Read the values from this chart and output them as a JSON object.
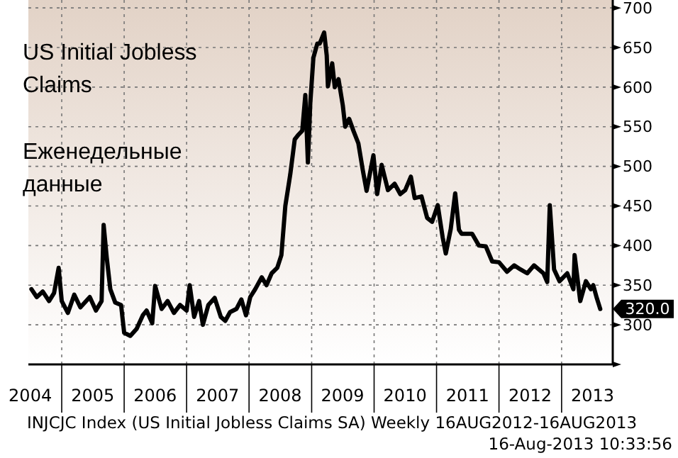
{
  "chart_data": {
    "type": "line",
    "title": "US Initial Jobless Claims",
    "subtitle": "Еженедельные данные",
    "annotations": [
      "INJCJC Index (US Initial Jobless Claims SA)  Weekly 16AUG2012-16AUG2013",
      "16-Aug-2013 10:33:56",
      "320.0"
    ],
    "grid": true,
    "line_style": "solid",
    "marker": "none",
    "xlim": [
      "2004-06-20",
      "2013-10-27"
    ],
    "ylim": [
      250,
      710
    ],
    "xticks": [
      {
        "value": "2004-07-01",
        "label": "2004"
      },
      {
        "value": "2005-01-01",
        "label": null
      },
      {
        "value": "2005-07-01",
        "label": "2005"
      },
      {
        "value": "2006-01-01",
        "label": null
      },
      {
        "value": "2006-07-01",
        "label": "2006"
      },
      {
        "value": "2007-01-01",
        "label": null
      },
      {
        "value": "2007-07-01",
        "label": "2007"
      },
      {
        "value": "2008-01-01",
        "label": null
      },
      {
        "value": "2008-07-01",
        "label": "2008"
      },
      {
        "value": "2009-01-01",
        "label": null
      },
      {
        "value": "2009-07-01",
        "label": "2009"
      },
      {
        "value": "2010-01-01",
        "label": null
      },
      {
        "value": "2010-07-01",
        "label": "2010"
      },
      {
        "value": "2011-01-01",
        "label": null
      },
      {
        "value": "2011-07-01",
        "label": "2011"
      },
      {
        "value": "2012-01-01",
        "label": null
      },
      {
        "value": "2012-07-01",
        "label": "2012"
      },
      {
        "value": "2013-01-01",
        "label": null
      },
      {
        "value": "2013-07-01",
        "label": "2013"
      }
    ],
    "yticks": [
      {
        "value": 250,
        "label": null
      },
      300,
      350,
      400,
      450,
      500,
      550,
      600,
      650,
      700
    ],
    "series": [
      {
        "color": "#000000",
        "x": [
          "2004-07-08",
          "2004-08-08",
          "2004-09-12",
          "2004-10-19",
          "2004-11-17",
          "2004-12-14",
          "2005-01-01",
          "2005-02-06",
          "2005-03-15",
          "2005-04-20",
          "2005-06-14",
          "2005-07-20",
          "2005-08-22",
          "2005-09-03",
          "2005-09-21",
          "2005-10-12",
          "2005-11-10",
          "2005-12-14",
          "2006-01-01",
          "2006-02-06",
          "2006-03-15",
          "2006-04-20",
          "2006-05-12",
          "2006-06-14",
          "2006-07-01",
          "2006-08-08",
          "2006-09-12",
          "2006-10-19",
          "2006-11-24",
          "2007-01-01",
          "2007-01-19",
          "2007-02-14",
          "2007-03-15",
          "2007-04-06",
          "2007-05-08",
          "2007-06-14",
          "2007-07-20",
          "2007-08-15",
          "2007-09-12",
          "2007-10-19",
          "2007-11-17",
          "2007-12-14",
          "2008-01-08",
          "2008-02-06",
          "2008-03-15",
          "2008-04-12",
          "2008-05-12",
          "2008-06-14",
          "2008-07-08",
          "2008-07-31",
          "2008-08-29",
          "2008-09-24",
          "2008-10-16",
          "2008-11-07",
          "2008-11-25",
          "2008-12-10",
          "2008-12-24",
          "2009-01-11",
          "2009-02-03",
          "2009-02-17",
          "2009-03-15",
          "2009-03-30",
          "2009-04-06",
          "2009-05-01",
          "2009-05-16",
          "2009-06-07",
          "2009-07-02",
          "2009-07-16",
          "2009-08-08",
          "2009-09-02",
          "2009-10-01",
          "2009-10-27",
          "2009-11-18",
          "2009-12-28",
          "2010-01-19",
          "2010-02-14",
          "2010-03-23",
          "2010-05-01",
          "2010-06-03",
          "2010-07-02",
          "2010-08-04",
          "2010-08-26",
          "2010-10-05",
          "2010-11-07",
          "2010-12-06",
          "2011-01-08",
          "2011-02-06",
          "2011-02-24",
          "2011-03-25",
          "2011-04-20",
          "2011-05-12",
          "2011-05-27",
          "2011-07-28",
          "2011-09-06",
          "2011-10-16",
          "2011-11-22",
          "2012-01-01",
          "2012-02-17",
          "2012-03-30",
          "2012-05-05",
          "2012-06-14",
          "2012-07-24",
          "2012-09-17",
          "2012-10-09",
          "2012-10-24",
          "2012-11-18",
          "2012-12-20",
          "2013-02-03",
          "2013-03-11",
          "2013-03-18",
          "2013-04-20",
          "2013-05-23",
          "2013-06-21",
          "2013-07-05",
          "2013-07-24",
          "2013-08-15"
        ],
        "values": [
          345,
          335,
          342,
          330,
          340,
          372,
          330,
          315,
          338,
          322,
          335,
          318,
          330,
          426,
          385,
          345,
          328,
          325,
          290,
          286,
          295,
          312,
          318,
          302,
          349,
          320,
          330,
          315,
          325,
          318,
          350,
          310,
          330,
          300,
          325,
          334,
          310,
          305,
          316,
          320,
          332,
          312,
          335,
          345,
          360,
          350,
          365,
          372,
          388,
          450,
          490,
          534,
          540,
          545,
          590,
          505,
          580,
          637,
          655,
          655,
          669,
          640,
          601,
          630,
          600,
          610,
          577,
          550,
          560,
          545,
          529,
          495,
          469,
          514,
          465,
          502,
          470,
          478,
          465,
          470,
          487,
          460,
          462,
          435,
          430,
          451,
          410,
          390,
          421,
          466,
          420,
          415,
          415,
          400,
          399,
          380,
          379,
          367,
          375,
          370,
          365,
          375,
          365,
          354,
          451,
          370,
          355,
          365,
          345,
          388,
          330,
          355,
          345,
          350,
          335,
          320
        ]
      }
    ]
  }
}
